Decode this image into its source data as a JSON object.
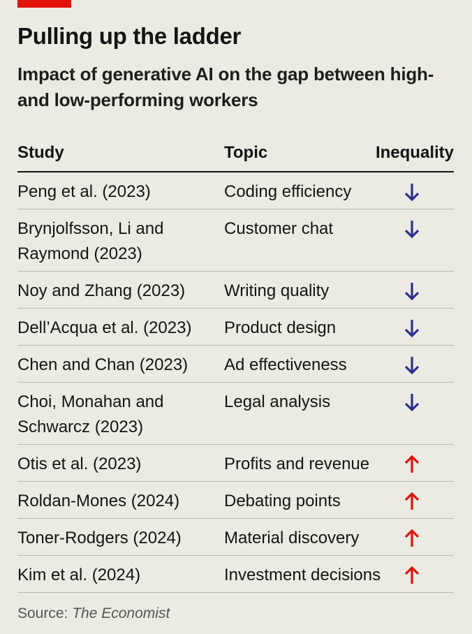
{
  "title": "Pulling up the ladder",
  "subtitle": "Impact of generative AI on the gap between high- and low-performing workers",
  "source": {
    "label": "Source:",
    "publication": "The Economist"
  },
  "colors": {
    "decrease": "#2e3192",
    "increase": "#e3120b",
    "tag": "#e3120b"
  },
  "chart_data": {
    "type": "table",
    "title": "Pulling up the ladder",
    "subtitle": "Impact of generative AI on the gap between high- and low-performing workers",
    "columns": [
      "Study",
      "Topic",
      "Inequality"
    ],
    "rows": [
      {
        "study": "Peng et al. (2023)",
        "topic": "Coding efficiency",
        "inequality": "down"
      },
      {
        "study": "Brynjolfsson, Li and Raymond (2023)",
        "topic": "Customer chat",
        "inequality": "down"
      },
      {
        "study": "Noy and Zhang (2023)",
        "topic": "Writing quality",
        "inequality": "down"
      },
      {
        "study": "Dell’Acqua et al. (2023)",
        "topic": "Product design",
        "inequality": "down"
      },
      {
        "study": "Chen and Chan (2023)",
        "topic": "Ad effectiveness",
        "inequality": "down"
      },
      {
        "study": "Choi, Monahan and Schwarcz (2023)",
        "topic": "Legal analysis",
        "inequality": "down"
      },
      {
        "study": "Otis et al. (2023)",
        "topic": "Profits and revenue",
        "inequality": "up"
      },
      {
        "study": "Roldan-Mones (2024)",
        "topic": "Debating points",
        "inequality": "up"
      },
      {
        "study": "Toner-Rodgers (2024)",
        "topic": "Material discovery",
        "inequality": "up"
      },
      {
        "study": "Kim et al. (2024)",
        "topic": "Investment decisions",
        "inequality": "up"
      }
    ]
  }
}
